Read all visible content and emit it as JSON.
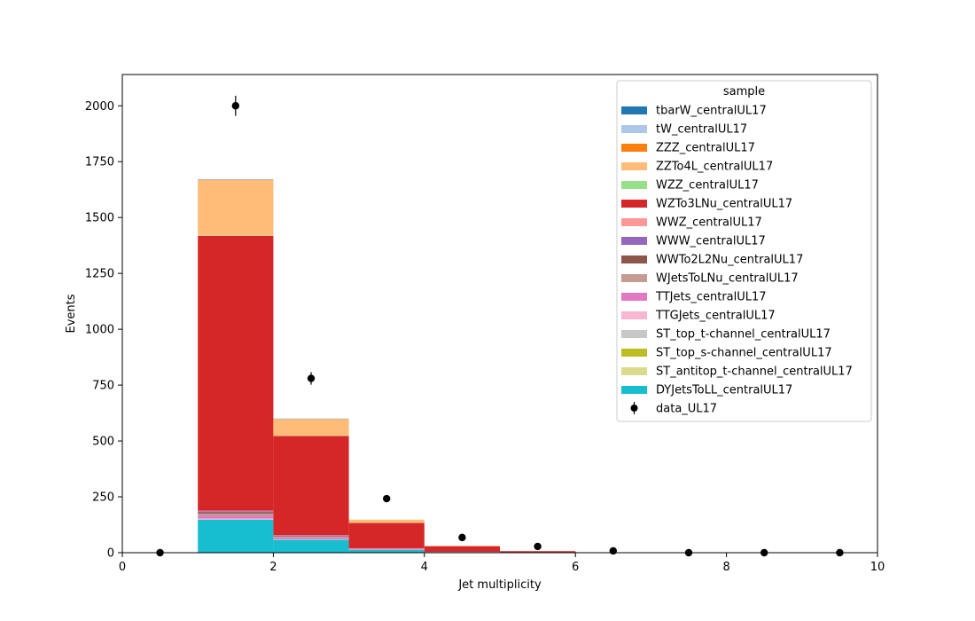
{
  "chart_data": {
    "type": "bar",
    "stacked": true,
    "xlabel": "Jet multiplicity",
    "ylabel": "Events",
    "xlim": [
      0,
      10
    ],
    "ylim": [
      0,
      2140
    ],
    "xticks": [
      0,
      2,
      4,
      6,
      8,
      10
    ],
    "yticks": [
      0,
      250,
      500,
      750,
      1000,
      1250,
      1500,
      1750,
      2000
    ],
    "grid": false,
    "bins": [
      [
        0,
        1
      ],
      [
        1,
        2
      ],
      [
        2,
        3
      ],
      [
        3,
        4
      ],
      [
        4,
        5
      ],
      [
        5,
        6
      ],
      [
        6,
        7
      ],
      [
        7,
        8
      ],
      [
        8,
        9
      ],
      [
        9,
        10
      ]
    ],
    "legend": {
      "title": "sample",
      "position": "top-right"
    },
    "series": [
      {
        "name": "DYJetsToLL_centralUL17",
        "color": "#17becf",
        "values": [
          0,
          148,
          58,
          12,
          3,
          1,
          0,
          0,
          0,
          0
        ]
      },
      {
        "name": "ST_antitop_t-channel_centralUL17",
        "color": "#dbdb8d",
        "values": [
          0,
          0,
          0,
          0,
          0,
          0,
          0,
          0,
          0,
          0
        ]
      },
      {
        "name": "ST_top_s-channel_centralUL17",
        "color": "#bcbd22",
        "values": [
          0,
          0,
          0,
          0,
          0,
          0,
          0,
          0,
          0,
          0
        ]
      },
      {
        "name": "ST_top_t-channel_centralUL17",
        "color": "#c7c7c7",
        "values": [
          0,
          0,
          0,
          0,
          0,
          0,
          0,
          0,
          0,
          0
        ]
      },
      {
        "name": "TTGJets_centralUL17",
        "color": "#f7b6d2",
        "values": [
          0,
          5,
          3,
          1,
          0,
          0,
          0,
          0,
          0,
          0
        ]
      },
      {
        "name": "TTJets_centralUL17",
        "color": "#e377c2",
        "values": [
          0,
          12,
          7,
          3,
          1,
          0,
          0,
          0,
          0,
          0
        ]
      },
      {
        "name": "WJetsToLNu_centralUL17",
        "color": "#c49c94",
        "values": [
          0,
          10,
          4,
          1,
          0,
          0,
          0,
          0,
          0,
          0
        ]
      },
      {
        "name": "WWTo2L2Nu_centralUL17",
        "color": "#8c564b",
        "values": [
          0,
          6,
          3,
          1,
          0,
          0,
          0,
          0,
          0,
          0
        ]
      },
      {
        "name": "WWW_centralUL17",
        "color": "#9467bd",
        "values": [
          0,
          5,
          3,
          1,
          0,
          0,
          0,
          0,
          0,
          0
        ]
      },
      {
        "name": "WWZ_centralUL17",
        "color": "#ff9896",
        "values": [
          0,
          2,
          1,
          1,
          0,
          0,
          0,
          0,
          0,
          0
        ]
      },
      {
        "name": "WZTo3LNu_centralUL17",
        "color": "#d62728",
        "values": [
          0,
          1230,
          443,
          113,
          25,
          6,
          2,
          0,
          0,
          0
        ]
      },
      {
        "name": "WZZ_centralUL17",
        "color": "#98df8a",
        "values": [
          0,
          2,
          1,
          1,
          0,
          0,
          0,
          0,
          0,
          0
        ]
      },
      {
        "name": "ZZTo4L_centralUL17",
        "color": "#ffbb78",
        "values": [
          0,
          247,
          74,
          14,
          2,
          0,
          0,
          0,
          0,
          0
        ]
      },
      {
        "name": "ZZZ_centralUL17",
        "color": "#ff7f0e",
        "values": [
          0,
          2,
          1,
          0,
          0,
          0,
          0,
          0,
          0,
          0
        ]
      },
      {
        "name": "tW_centralUL17",
        "color": "#aec7e8",
        "values": [
          0,
          1,
          1,
          0,
          0,
          0,
          0,
          0,
          0,
          0
        ]
      },
      {
        "name": "tbarW_centralUL17",
        "color": "#1f77b4",
        "values": [
          0,
          1,
          1,
          0,
          0,
          0,
          0,
          0,
          0,
          0
        ]
      }
    ],
    "data": {
      "name": "data_UL17",
      "color": "#000000",
      "x": [
        0.5,
        1.5,
        2.5,
        3.5,
        4.5,
        5.5,
        6.5,
        7.5,
        8.5,
        9.5
      ],
      "y": [
        0,
        2000,
        780,
        242,
        68,
        28,
        8,
        0,
        0,
        0
      ],
      "yerr": [
        0,
        45,
        28,
        16,
        8,
        5,
        3,
        0,
        0,
        0
      ]
    }
  }
}
